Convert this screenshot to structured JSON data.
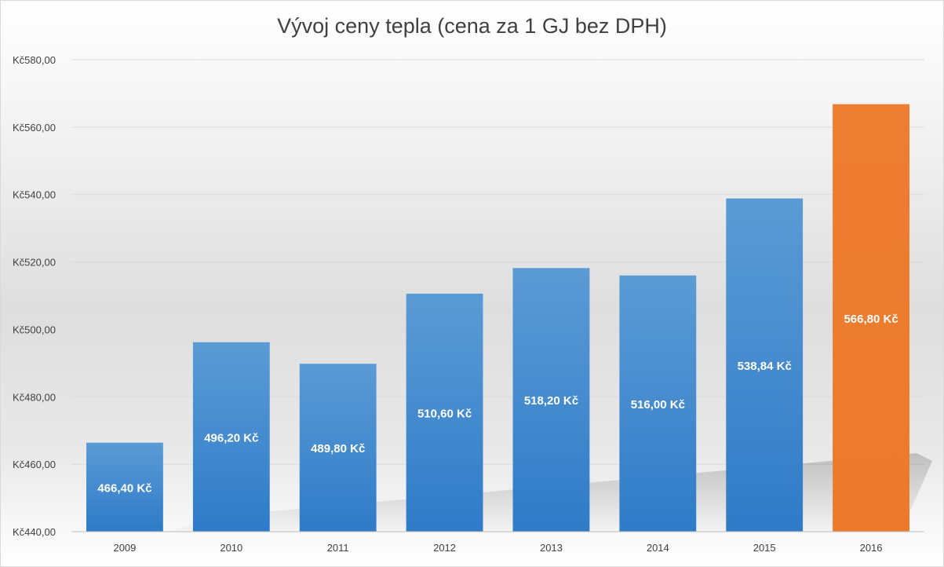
{
  "chart_data": {
    "type": "bar",
    "title": "Vývoj ceny tepla (cena za 1 GJ bez DPH)",
    "xlabel": "",
    "ylabel": "",
    "categories": [
      "2009",
      "2010",
      "2011",
      "2012",
      "2013",
      "2014",
      "2015",
      "2016"
    ],
    "values": [
      466.4,
      496.2,
      489.8,
      510.6,
      518.2,
      516.0,
      538.84,
      566.8
    ],
    "data_labels": [
      "466,40 Kč",
      "496,20 Kč",
      "489,80 Kč",
      "510,60 Kč",
      "518,20 Kč",
      "516,00 Kč",
      "538,84 Kč",
      "566,80 Kč"
    ],
    "ylim": [
      440,
      580
    ],
    "yticks": [
      440,
      460,
      480,
      500,
      520,
      540,
      560,
      580
    ],
    "ytick_labels": [
      "Kč440,00",
      "Kč460,00",
      "Kč480,00",
      "Kč500,00",
      "Kč520,00",
      "Kč540,00",
      "Kč560,00",
      "Kč580,00"
    ],
    "grid": true,
    "legend": "none",
    "colors": {
      "default_bar": "#3f86cf",
      "highlight_bar": "#ed7d31",
      "label_text": "#ffffff",
      "grid": "#d9d9d9",
      "axis_text": "#404040"
    },
    "highlight_index": 7
  }
}
